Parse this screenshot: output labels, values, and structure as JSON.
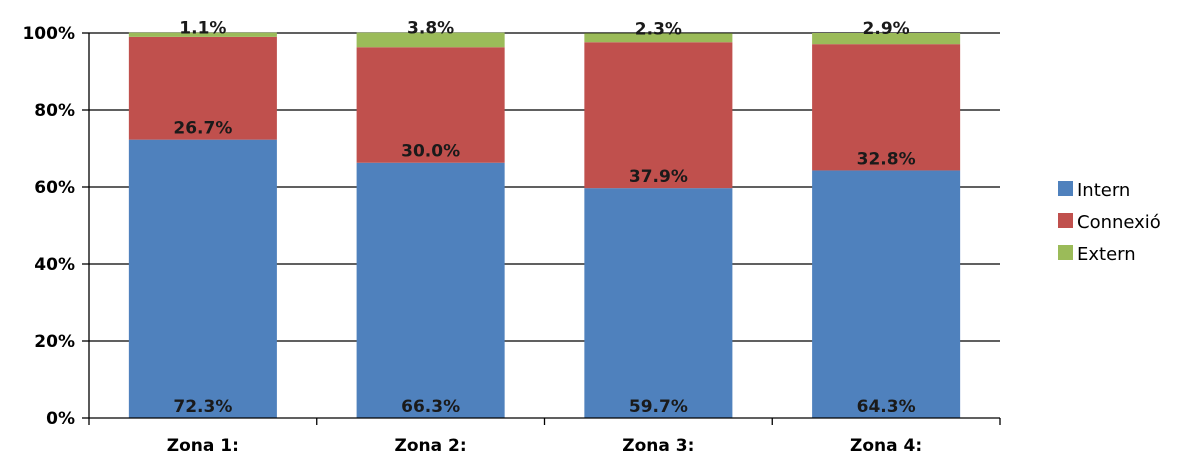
{
  "chart_data": {
    "type": "bar",
    "stacked": true,
    "percent_stacked": true,
    "categories": [
      "Zona 1:",
      "Zona 2:",
      "Zona 3:",
      "Zona 4:"
    ],
    "series": [
      {
        "name": "Intern",
        "values": [
          72.3,
          66.3,
          59.7,
          64.3
        ],
        "labels": [
          "72.3%",
          "66.3%",
          "59.7%",
          "64.3%"
        ],
        "color": "#4F81BD"
      },
      {
        "name": "Connexió",
        "values": [
          26.7,
          30.0,
          37.9,
          32.8
        ],
        "labels": [
          "26.7%",
          "30.0%",
          "37.9%",
          "32.8%"
        ],
        "color": "#C0504D"
      },
      {
        "name": "Extern",
        "values": [
          1.1,
          3.8,
          2.3,
          2.9
        ],
        "labels": [
          "1.1%",
          "3.8%",
          "2.3%",
          "2.9%"
        ],
        "color": "#9BBB59"
      }
    ],
    "y_ticks": [
      "0%",
      "20%",
      "40%",
      "60%",
      "80%",
      "100%"
    ],
    "ylim": [
      0,
      100
    ],
    "grid": true,
    "legend_position": "right",
    "title": "",
    "xlabel": "",
    "ylabel": ""
  }
}
